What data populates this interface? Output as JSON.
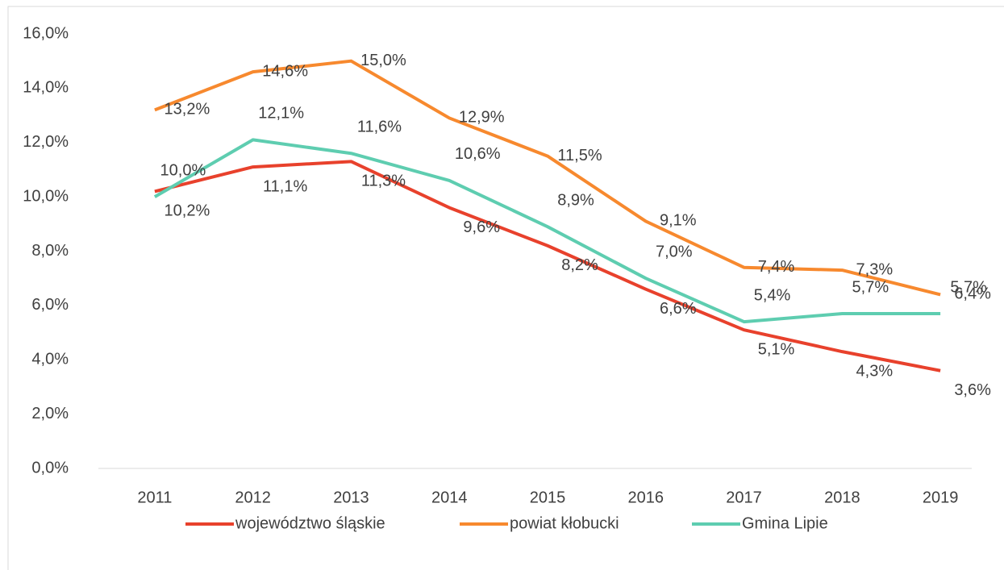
{
  "chart_data": {
    "type": "line",
    "categories": [
      "2011",
      "2012",
      "2013",
      "2014",
      "2015",
      "2016",
      "2017",
      "2018",
      "2019"
    ],
    "series": [
      {
        "name": "województwo śląskie",
        "color": "#e8412c",
        "values": [
          10.2,
          11.1,
          11.3,
          9.6,
          8.2,
          6.6,
          5.1,
          4.3,
          3.6
        ],
        "value_labels": [
          "10,2%",
          "11,1%",
          "11,3%",
          "9,6%",
          "8,2%",
          "6,6%",
          "5,1%",
          "4,3%",
          "3,6%"
        ]
      },
      {
        "name": "powiat kłobucki",
        "color": "#f7892e",
        "values": [
          13.2,
          14.6,
          15.0,
          12.9,
          11.5,
          9.1,
          7.4,
          7.3,
          6.4
        ],
        "value_labels": [
          "13,2%",
          "14,6%",
          "15,0%",
          "12,9%",
          "11,5%",
          "9,1%",
          "7,4%",
          "7,3%",
          "6,4%"
        ]
      },
      {
        "name": "Gmina Lipie",
        "color": "#5ecdb0",
        "values": [
          10.0,
          12.1,
          11.6,
          10.6,
          8.9,
          7.0,
          5.4,
          5.7,
          5.7
        ],
        "value_labels": [
          "10,0%",
          "12,1%",
          "11,6%",
          "10,6%",
          "8,9%",
          "7,0%",
          "5,4%",
          "5,7%",
          "5,7%"
        ]
      }
    ],
    "ylim": [
      0,
      16
    ],
    "yticks": [
      {
        "value": 0,
        "label": "0,0%"
      },
      {
        "value": 2,
        "label": "2,0%"
      },
      {
        "value": 4,
        "label": "4,0%"
      },
      {
        "value": 6,
        "label": "6,0%"
      },
      {
        "value": 8,
        "label": "8,0%"
      },
      {
        "value": 10,
        "label": "10,0%"
      },
      {
        "value": 12,
        "label": "12,0%"
      },
      {
        "value": 14,
        "label": "14,0%"
      },
      {
        "value": 16,
        "label": "16,0%"
      }
    ],
    "grid": false,
    "legend": "bottom"
  }
}
